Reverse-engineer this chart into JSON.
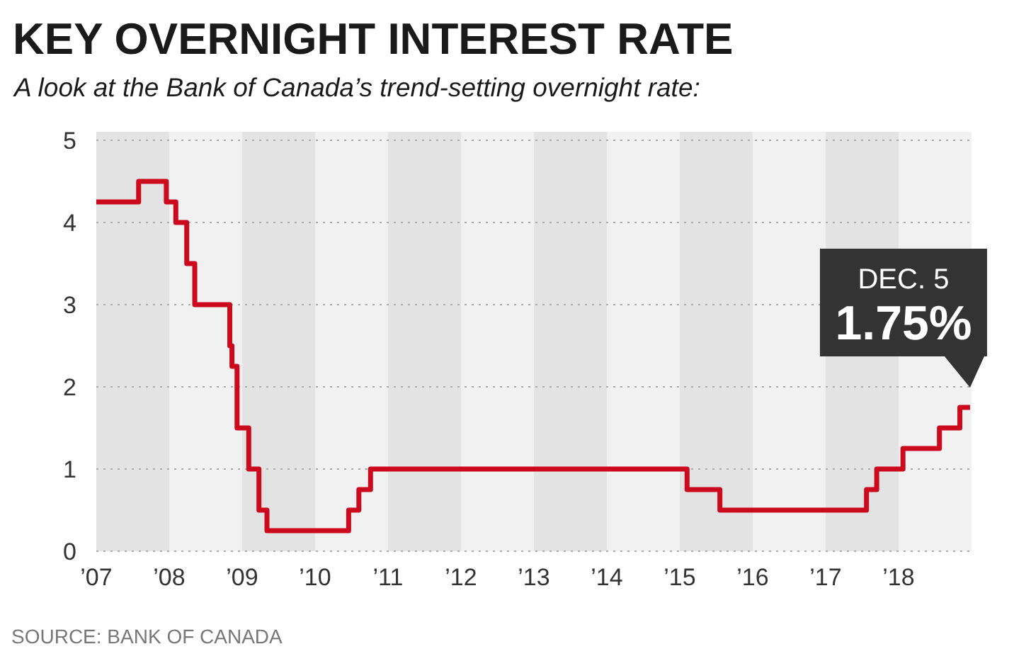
{
  "chart_data": {
    "type": "step",
    "title": "KEY OVERNIGHT INTEREST RATE",
    "subtitle": "A look at the Bank of Canada’s trend-setting overnight rate:",
    "x": [
      2007.0,
      2007.58,
      2007.96,
      2008.09,
      2008.24,
      2008.35,
      2008.83,
      2008.86,
      2008.93,
      2009.09,
      2009.23,
      2009.34,
      2010.46,
      2010.6,
      2010.76,
      2015.1,
      2015.55,
      2017.56,
      2017.7,
      2018.06,
      2018.56,
      2018.84,
      2018.98
    ],
    "series": [
      {
        "color": "#cc0a1e",
        "values": [
          4.25,
          4.5,
          4.25,
          4.0,
          3.5,
          3.0,
          2.5,
          2.25,
          1.5,
          1.0,
          0.5,
          0.25,
          0.5,
          0.75,
          1.0,
          0.75,
          0.5,
          0.75,
          1.0,
          1.25,
          1.5,
          1.75,
          1.75
        ]
      }
    ],
    "xlim": [
      2007,
      2019
    ],
    "xticks": [
      {
        "value": 2007,
        "label": "’07"
      },
      {
        "value": 2008,
        "label": "’08"
      },
      {
        "value": 2009,
        "label": "’09"
      },
      {
        "value": 2010,
        "label": "’10"
      },
      {
        "value": 2011,
        "label": "’11"
      },
      {
        "value": 2012,
        "label": "’12"
      },
      {
        "value": 2013,
        "label": "’13"
      },
      {
        "value": 2014,
        "label": "’14"
      },
      {
        "value": 2015,
        "label": "’15"
      },
      {
        "value": 2016,
        "label": "’16"
      },
      {
        "value": 2017,
        "label": "’17"
      },
      {
        "value": 2018,
        "label": "’18"
      }
    ],
    "bands": [
      {
        "axis": "x",
        "from": 2007,
        "to": 2008,
        "color": "#e3e3e3"
      },
      {
        "axis": "x",
        "from": 2009,
        "to": 2010,
        "color": "#e3e3e3"
      },
      {
        "axis": "x",
        "from": 2011,
        "to": 2012,
        "color": "#e3e3e3"
      },
      {
        "axis": "x",
        "from": 2013,
        "to": 2014,
        "color": "#e3e3e3"
      },
      {
        "axis": "x",
        "from": 2015,
        "to": 2016,
        "color": "#e3e3e3"
      },
      {
        "axis": "x",
        "from": 2017,
        "to": 2018,
        "color": "#e3e3e3"
      }
    ],
    "ylim": [
      0,
      5
    ],
    "yticks": [
      0,
      1,
      2,
      3,
      4,
      5
    ],
    "grid": "y",
    "annotations": [
      "DEC. 5",
      "1.75%",
      "SOURCE: BANK OF CANADA"
    ]
  }
}
